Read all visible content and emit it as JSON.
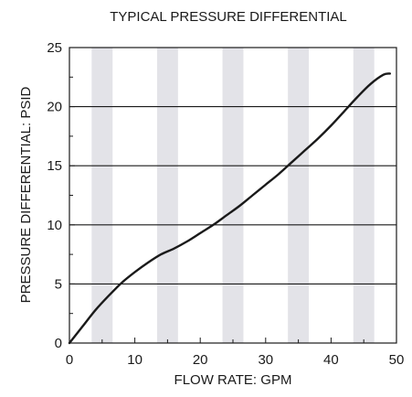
{
  "chart_data": {
    "type": "line",
    "title": "TYPICAL PRESSURE DIFFERENTIAL",
    "xlabel": "FLOW RATE: GPM",
    "ylabel": "PRESSURE DIFFERENTIAL: PSID",
    "xlim": [
      0,
      50
    ],
    "ylim": [
      0,
      25
    ],
    "x_ticks": [
      0,
      10,
      20,
      30,
      40,
      50
    ],
    "y_ticks": [
      0,
      5,
      10,
      15,
      20,
      25
    ],
    "x_tick_labels": [
      "0",
      "10",
      "20",
      "30",
      "40",
      "50"
    ],
    "y_tick_labels": [
      "0",
      "5",
      "10",
      "15",
      "20",
      "25"
    ],
    "grid": "horizontal lines at major y ticks",
    "background_stripe_color": "#e3e3e8",
    "line_color": "#1a1a1a",
    "series": [
      {
        "x": [
          0,
          2,
          4,
          6,
          8,
          10,
          12,
          14,
          16,
          18,
          20,
          22,
          24,
          26,
          28,
          30,
          32,
          34,
          36,
          38,
          40,
          42,
          44,
          46,
          48,
          49
        ],
        "y": [
          0,
          1.4,
          2.8,
          4.0,
          5.1,
          6.0,
          6.8,
          7.5,
          8.0,
          8.6,
          9.3,
          10.0,
          10.8,
          11.6,
          12.5,
          13.4,
          14.3,
          15.3,
          16.3,
          17.3,
          18.4,
          19.6,
          20.8,
          21.9,
          22.7,
          22.8
        ]
      }
    ]
  }
}
